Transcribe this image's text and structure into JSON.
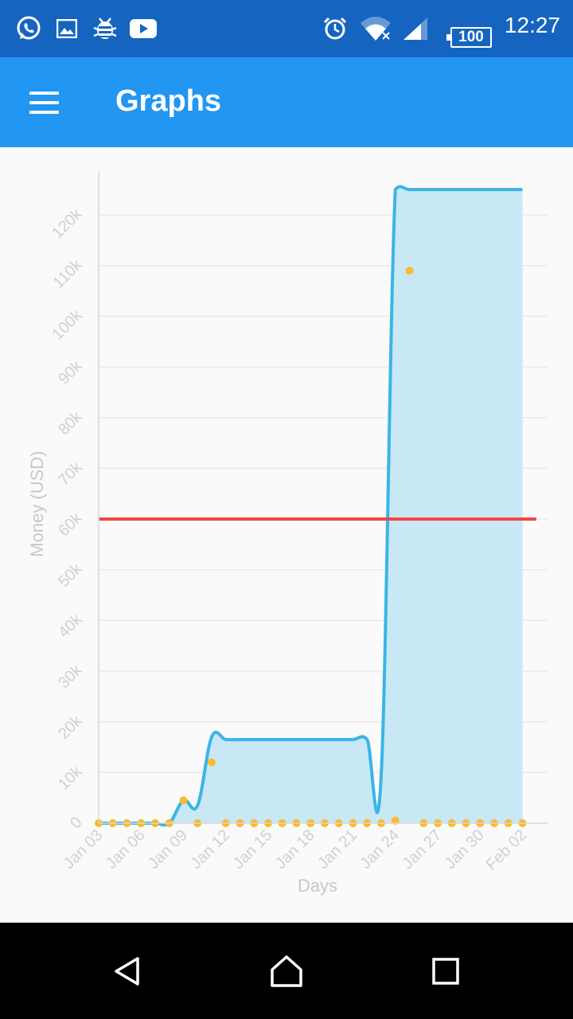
{
  "status_bar": {
    "time": "12:27",
    "battery": "100",
    "icons": [
      "whatsapp-icon",
      "gallery-icon",
      "debug-icon",
      "youtube-icon",
      "alarm-icon",
      "wifi-icon",
      "signal-icon",
      "battery-icon"
    ]
  },
  "app_bar": {
    "title": "Graphs",
    "menu_icon": "hamburger-menu-icon"
  },
  "nav_bar": {
    "icons": [
      "back-icon",
      "home-icon",
      "recents-icon"
    ]
  },
  "colors": {
    "status_bar": "#1565c0",
    "app_bar": "#2196f3",
    "line": "#3ab5e6",
    "fill": "#c8e8f5",
    "points": "#fbb92f",
    "threshold": "#f44646"
  },
  "chart_data": {
    "type": "area",
    "xlabel": "Days",
    "ylabel": "Money (USD)",
    "ylim": [
      0,
      120000
    ],
    "y_tick_labels": [
      "0",
      "10k",
      "20k",
      "30k",
      "40k",
      "50k",
      "60k",
      "70k",
      "80k",
      "90k",
      "100k",
      "110k",
      "120k"
    ],
    "x_tick_labels": [
      "Jan 03",
      "Jan 06",
      "Jan 09",
      "Jan 12",
      "Jan 15",
      "Jan 18",
      "Jan 21",
      "Jan 24",
      "Jan 27",
      "Jan 30",
      "Feb 02"
    ],
    "x": [
      "Jan 03",
      "Jan 04",
      "Jan 05",
      "Jan 06",
      "Jan 07",
      "Jan 08",
      "Jan 09",
      "Jan 10",
      "Jan 11",
      "Jan 12",
      "Jan 13",
      "Jan 14",
      "Jan 15",
      "Jan 16",
      "Jan 17",
      "Jan 18",
      "Jan 19",
      "Jan 20",
      "Jan 21",
      "Jan 22",
      "Jan 23",
      "Jan 24",
      "Jan 25",
      "Jan 26",
      "Jan 27",
      "Jan 28",
      "Jan 29",
      "Jan 30",
      "Jan 31",
      "Feb 01",
      "Feb 02"
    ],
    "series": [
      {
        "values": [
          0,
          0,
          0,
          0,
          0,
          0,
          4500,
          3500,
          17000,
          16500,
          16500,
          16500,
          16500,
          16500,
          16500,
          16500,
          16500,
          16500,
          16500,
          16500,
          9500,
          125000,
          125000,
          125000,
          125000,
          125000,
          125000,
          125000,
          125000,
          125000,
          125000
        ]
      },
      {
        "values": [
          0,
          0,
          0,
          0,
          0,
          0,
          4500,
          0,
          12000,
          0,
          0,
          0,
          0,
          0,
          0,
          0,
          0,
          0,
          0,
          0,
          0,
          500,
          109000,
          0,
          0,
          0,
          0,
          0,
          0,
          0,
          0
        ]
      },
      {
        "values": [
          60000,
          60000,
          60000,
          60000,
          60000,
          60000,
          60000,
          60000,
          60000,
          60000,
          60000,
          60000,
          60000,
          60000,
          60000,
          60000,
          60000,
          60000,
          60000,
          60000,
          60000,
          60000,
          60000,
          60000,
          60000,
          60000,
          60000,
          60000,
          60000,
          60000,
          60000
        ]
      }
    ],
    "grid": true,
    "legend": "none"
  }
}
